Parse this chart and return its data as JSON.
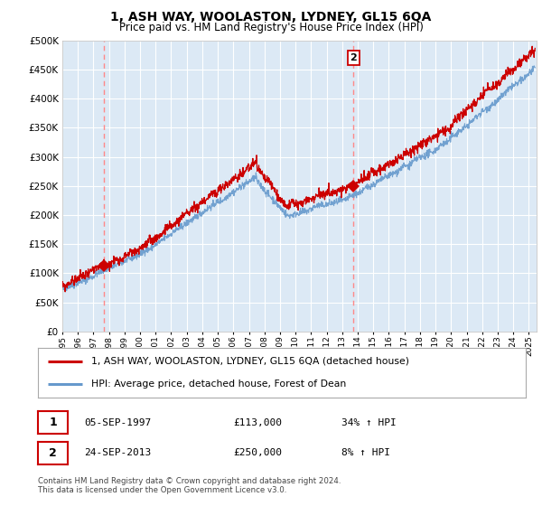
{
  "title": "1, ASH WAY, WOOLASTON, LYDNEY, GL15 6QA",
  "subtitle": "Price paid vs. HM Land Registry's House Price Index (HPI)",
  "ylim": [
    0,
    500000
  ],
  "yticks": [
    0,
    50000,
    100000,
    150000,
    200000,
    250000,
    300000,
    350000,
    400000,
    450000,
    500000
  ],
  "xlim_start": 1995.0,
  "xlim_end": 2025.5,
  "background_color": "#dce9f5",
  "plot_bg_color": "#dce9f5",
  "grid_color": "#ffffff",
  "sale1_x": 1997.67,
  "sale1_y": 113000,
  "sale2_x": 2013.73,
  "sale2_y": 250000,
  "sale1_label": "1",
  "sale2_label": "2",
  "legend_line1": "1, ASH WAY, WOOLASTON, LYDNEY, GL15 6QA (detached house)",
  "legend_line2": "HPI: Average price, detached house, Forest of Dean",
  "table_row1": [
    "1",
    "05-SEP-1997",
    "£113,000",
    "34% ↑ HPI"
  ],
  "table_row2": [
    "2",
    "24-SEP-2013",
    "£250,000",
    "8% ↑ HPI"
  ],
  "footnote": "Contains HM Land Registry data © Crown copyright and database right 2024.\nThis data is licensed under the Open Government Licence v3.0.",
  "red_color": "#cc0000",
  "blue_color": "#6699cc",
  "dashed_red": "#ff6666",
  "n_points": 1500
}
